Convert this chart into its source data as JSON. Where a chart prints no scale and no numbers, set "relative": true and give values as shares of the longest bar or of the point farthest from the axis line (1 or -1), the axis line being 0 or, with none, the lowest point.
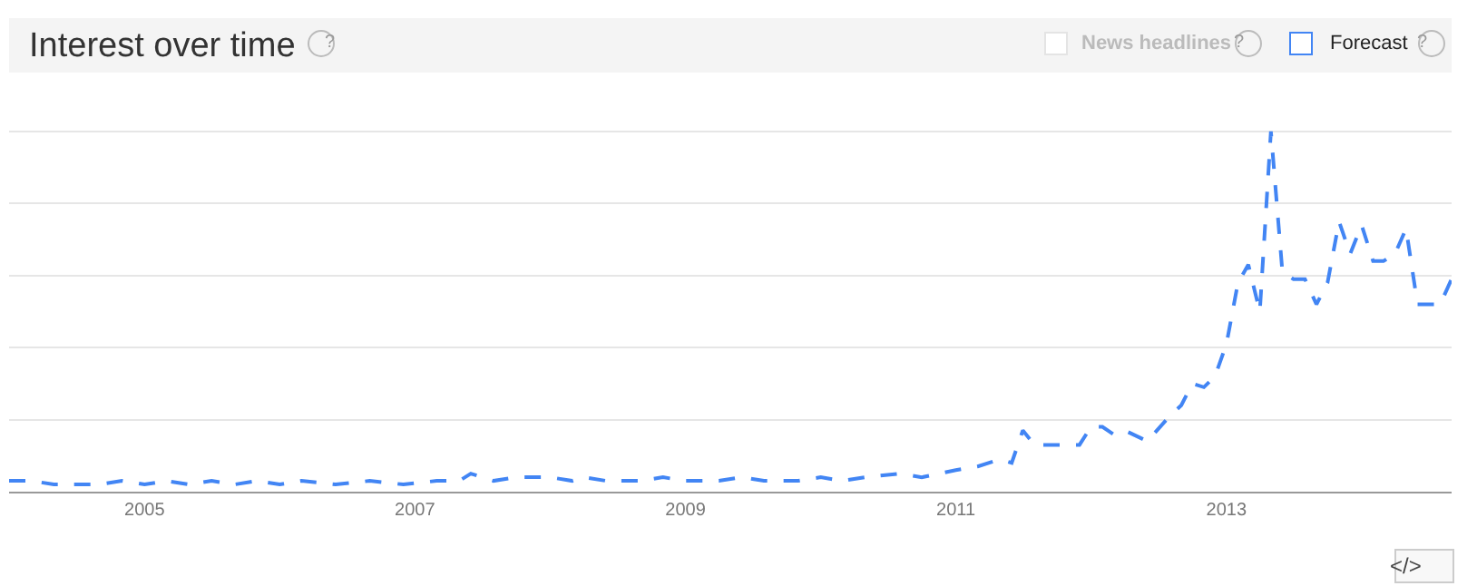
{
  "chart_data": {
    "type": "line",
    "title": "Interest over time",
    "relative": true,
    "grid": "y",
    "legend": false,
    "line_style": "dashed",
    "marker": "none",
    "x": [
      "2004-01",
      "2004-03",
      "2004-05",
      "2004-09",
      "2004-11",
      "2005-01",
      "2005-03",
      "2005-05",
      "2005-07",
      "2005-09",
      "2005-11",
      "2006-01",
      "2006-03",
      "2006-06",
      "2006-09",
      "2006-12",
      "2007-03",
      "2007-05",
      "2007-06",
      "2007-08",
      "2007-10",
      "2008-01",
      "2008-03",
      "2008-04",
      "2008-06",
      "2008-09",
      "2008-11",
      "2009-01",
      "2009-04",
      "2009-06",
      "2009-08",
      "2009-11",
      "2010-01",
      "2010-03",
      "2010-05",
      "2010-08",
      "2010-10",
      "2011-01",
      "2011-03",
      "2011-05",
      "2011-06",
      "2011-07",
      "2011-08",
      "2011-10",
      "2011-12",
      "2012-01",
      "2012-02",
      "2012-03",
      "2012-04",
      "2012-06",
      "2012-08",
      "2012-09",
      "2012-10",
      "2012-11",
      "2012-12",
      "2013-01",
      "2013-02",
      "2013-03",
      "2013-04",
      "2013-05",
      "2013-06",
      "2013-07",
      "2013-08",
      "2013-09",
      "2013-10",
      "2013-11",
      "2013-12",
      "2014-01",
      "2014-02",
      "2014-03",
      "2014-04",
      "2014-05",
      "2014-06",
      "2014-08",
      "2014-09"
    ],
    "series": [
      {
        "color": "#4285f4",
        "values": [
          0.03,
          0.03,
          0.02,
          0.02,
          0.03,
          0.02,
          0.03,
          0.02,
          0.03,
          0.02,
          0.03,
          0.02,
          0.03,
          0.02,
          0.03,
          0.02,
          0.03,
          0.03,
          0.05,
          0.03,
          0.04,
          0.04,
          0.03,
          0.04,
          0.03,
          0.03,
          0.04,
          0.03,
          0.03,
          0.04,
          0.03,
          0.03,
          0.04,
          0.03,
          0.04,
          0.05,
          0.04,
          0.06,
          0.07,
          0.09,
          0.08,
          0.17,
          0.13,
          0.13,
          0.13,
          0.18,
          0.18,
          0.16,
          0.17,
          0.14,
          0.21,
          0.24,
          0.3,
          0.29,
          0.32,
          0.41,
          0.58,
          0.63,
          0.5,
          1,
          0.61,
          0.59,
          0.59,
          0.52,
          0.58,
          0.75,
          0.66,
          0.74,
          0.64,
          0.64,
          0.66,
          0.73,
          0.52,
          0.52,
          0.59
        ]
      }
    ],
    "xlim": [
      "2004-01",
      "2014-09"
    ],
    "xticks": [
      "2005",
      "2007",
      "2009",
      "2011",
      "2013"
    ],
    "annotations": [
      "?",
      "News headlines",
      "?",
      "Forecast",
      "?",
      "</>"
    ]
  }
}
